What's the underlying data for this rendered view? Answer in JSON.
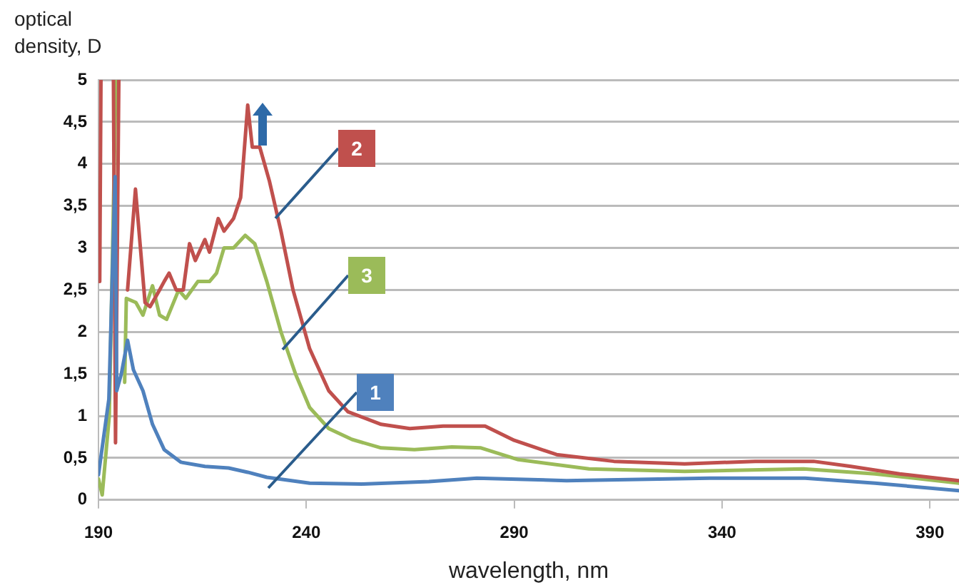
{
  "chart_data": {
    "type": "line",
    "xlabel": "wavelength, nm",
    "ylabel": "optical density, D",
    "xlim": [
      190,
      397
    ],
    "xticks": [
      190,
      240,
      290,
      340,
      390
    ],
    "ylim": [
      0,
      5
    ],
    "yticks": [
      0,
      {
        "value": 0.5,
        "label": "0,5"
      },
      1,
      {
        "value": 1.5,
        "label": "1,5"
      },
      2,
      {
        "value": 2.5,
        "label": "2,5"
      },
      3,
      {
        "value": 3.5,
        "label": "3,5"
      },
      4,
      {
        "value": 4.5,
        "label": "4,5"
      },
      5
    ],
    "grid": "y",
    "legend": false,
    "marker": "none",
    "line_style": "solid",
    "series": [
      {
        "name": "1",
        "color": "#4f81bd",
        "x": [
          190,
          192.5,
          194,
          194.4,
          195.5,
          197,
          198.4,
          200.7,
          203,
          205.8,
          209.8,
          215.6,
          221.3,
          225.9,
          230.5,
          240.8,
          253.4,
          269.5,
          281,
          302.6,
          337,
          360,
          376.8,
          397
        ],
        "values": [
          0.3,
          1.2,
          3.85,
          1.3,
          1.5,
          1.9,
          1.55,
          1.3,
          0.9,
          0.6,
          0.45,
          0.4,
          0.38,
          0.33,
          0.27,
          0.2,
          0.19,
          0.22,
          0.26,
          0.23,
          0.26,
          0.26,
          0.2,
          0.11
        ]
      },
      {
        "name": "2",
        "color": "#c0504d",
        "x": [
          190.3,
          190.6,
          191,
          193.6,
          194.1,
          194.9,
          195.5,
          197,
          198.9,
          201.2,
          202.4,
          204.7,
          205.8,
          207,
          208.7,
          210.4,
          211.9,
          213.3,
          215.6,
          216.7,
          218.8,
          220.2,
          222.5,
          224.2,
          225.9,
          227,
          228.8,
          231.1,
          233.9,
          236.8,
          240.8,
          245.4,
          250,
          258,
          264.9,
          272.9,
          283,
          290,
          300.2,
          314,
          331,
          348,
          362,
          371,
          382.7,
          397
        ],
        "values": [
          2.6,
          5,
          null,
          5,
          0.68,
          5,
          null,
          2.5,
          3.7,
          2.35,
          2.3,
          2.5,
          2.6,
          2.7,
          2.5,
          2.5,
          3.05,
          2.85,
          3.1,
          2.95,
          3.35,
          3.2,
          3.35,
          3.6,
          4.7,
          4.2,
          4.2,
          3.8,
          3.2,
          2.5,
          1.8,
          1.3,
          1.05,
          0.9,
          0.85,
          0.88,
          0.88,
          0.71,
          0.54,
          0.46,
          0.43,
          0.46,
          0.46,
          0.4,
          0.31,
          0.23
        ]
      },
      {
        "name": "3",
        "color": "#9bbb59",
        "x": [
          190,
          190.9,
          192.6,
          194.2,
          195.2,
          196.3,
          196.7,
          199,
          200.7,
          203,
          204.7,
          206.4,
          209.3,
          211,
          213.9,
          216.7,
          218.4,
          220.2,
          222.5,
          225.3,
          227.6,
          230.5,
          233.9,
          237.4,
          240.8,
          245.4,
          251,
          258,
          266,
          275,
          282,
          291,
          308,
          331,
          359.6,
          376.8,
          397
        ],
        "values": [
          0.25,
          0.06,
          1,
          5,
          null,
          1.4,
          2.4,
          2.35,
          2.2,
          2.55,
          2.2,
          2.15,
          2.5,
          2.4,
          2.6,
          2.6,
          2.7,
          3,
          3,
          3.15,
          3.05,
          2.6,
          2,
          1.5,
          1.1,
          0.85,
          0.72,
          0.62,
          0.6,
          0.63,
          0.62,
          0.48,
          0.37,
          0.34,
          0.37,
          0.31,
          0.2
        ]
      }
    ]
  }
}
